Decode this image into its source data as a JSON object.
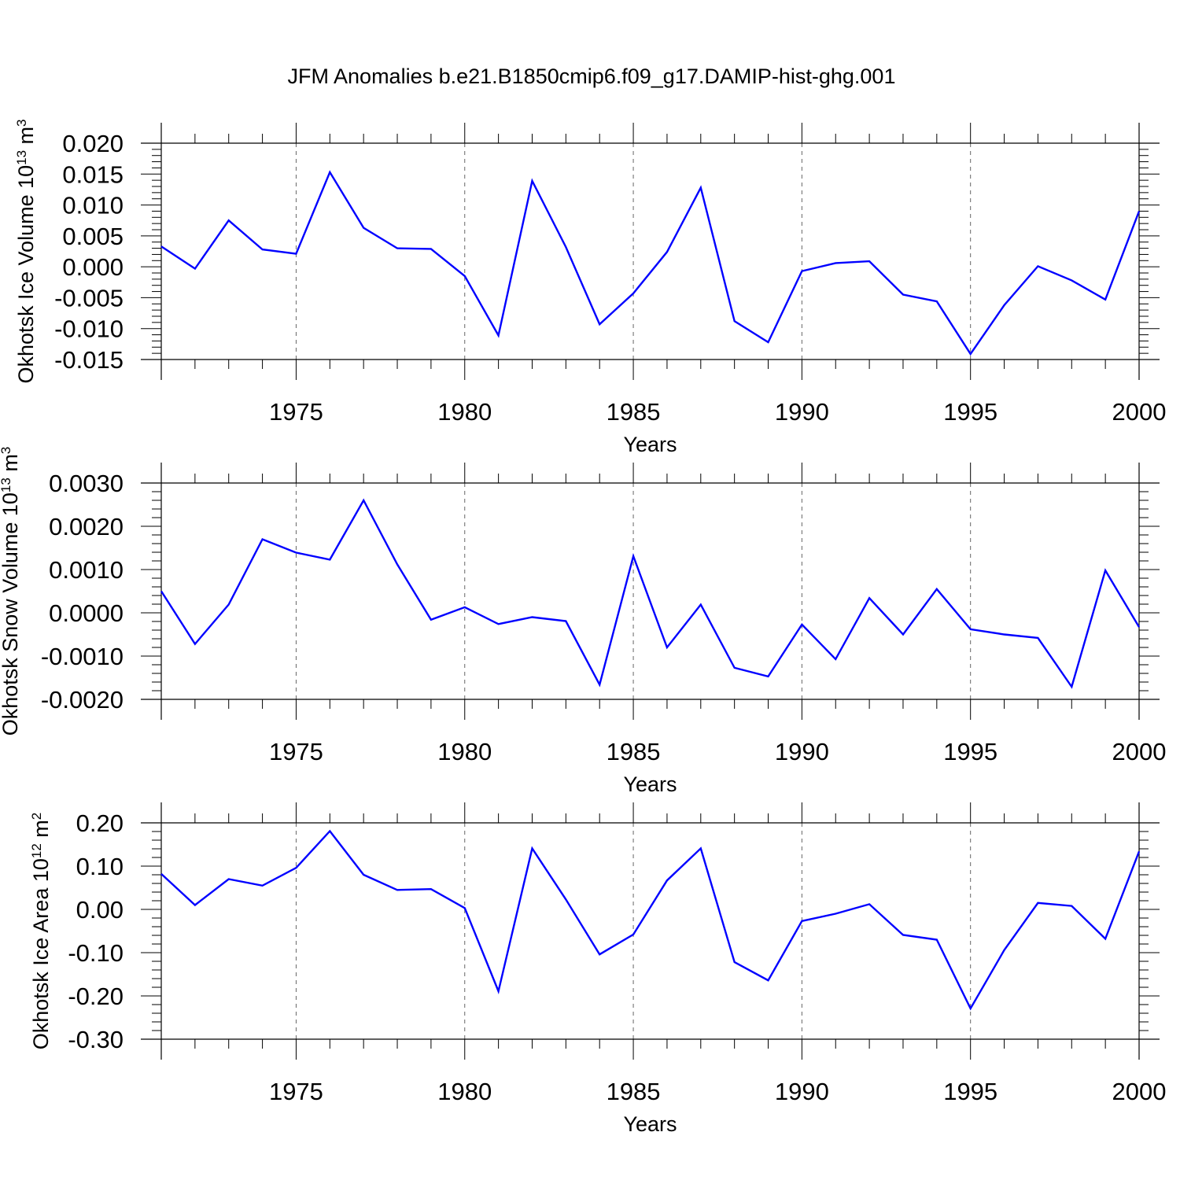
{
  "title": "JFM Anomalies b.e21.B1850cmip6.f09_g17.DAMIP-hist-ghg.001",
  "line_color": "#0000ff",
  "chart_data": [
    {
      "type": "line",
      "ylabel": "Okhotsk Ice Volume 10",
      "ylabel_sup": "13",
      "ylabel_unit": " m",
      "ylabel_unit_sup": "3",
      "xlabel": "Years",
      "ylim": [
        -0.015,
        0.02
      ],
      "yticks": [
        0.02,
        0.015,
        0.01,
        0.005,
        0.0,
        -0.005,
        -0.01,
        -0.015
      ],
      "ytick_labels": [
        "0.020",
        "0.015",
        "0.010",
        "0.005",
        "0.000",
        "-0.005",
        "-0.010",
        "-0.015"
      ],
      "xlim": [
        1971,
        2000
      ],
      "xticks": [
        1975,
        1980,
        1985,
        1990,
        1995,
        2000
      ],
      "xtick_labels": [
        "1975",
        "1980",
        "1985",
        "1990",
        "1995",
        "2000"
      ],
      "grid": "dashed vertical at major x ticks",
      "x": [
        1971,
        1972,
        1973,
        1974,
        1975,
        1976,
        1977,
        1978,
        1979,
        1980,
        1981,
        1982,
        1983,
        1984,
        1985,
        1986,
        1987,
        1988,
        1989,
        1990,
        1991,
        1992,
        1993,
        1994,
        1995,
        1996,
        1997,
        1998,
        1999,
        2000
      ],
      "series": [
        {
          "values": [
            0.0033,
            -0.0003,
            0.0075,
            0.0028,
            0.0021,
            0.0153,
            0.0063,
            0.003,
            0.0029,
            -0.0015,
            -0.0111,
            0.0139,
            0.0032,
            -0.0093,
            -0.0043,
            0.0024,
            0.0128,
            -0.0088,
            -0.0122,
            -0.0007,
            0.0006,
            0.0009,
            -0.0045,
            -0.0056,
            -0.0141,
            -0.0062,
            0.0001,
            -0.0022,
            -0.0053,
            0.009
          ]
        }
      ]
    },
    {
      "type": "line",
      "ylabel": "Okhotsk Snow Volume 10",
      "ylabel_sup": "13",
      "ylabel_unit": " m",
      "ylabel_unit_sup": "3",
      "xlabel": "Years",
      "ylim": [
        -0.002,
        0.003
      ],
      "yticks": [
        0.003,
        0.002,
        0.001,
        0.0,
        -0.001,
        -0.002
      ],
      "ytick_labels": [
        "0.0030",
        "0.0020",
        "0.0010",
        "0.0000",
        "-0.0010",
        "-0.0020"
      ],
      "xlim": [
        1971,
        2000
      ],
      "xticks": [
        1975,
        1980,
        1985,
        1990,
        1995,
        2000
      ],
      "xtick_labels": [
        "1975",
        "1980",
        "1985",
        "1990",
        "1995",
        "2000"
      ],
      "grid": "dashed vertical at major x ticks",
      "x": [
        1971,
        1972,
        1973,
        1974,
        1975,
        1976,
        1977,
        1978,
        1979,
        1980,
        1981,
        1982,
        1983,
        1984,
        1985,
        1986,
        1987,
        1988,
        1989,
        1990,
        1991,
        1992,
        1993,
        1994,
        1995,
        1996,
        1997,
        1998,
        1999,
        2000
      ],
      "series": [
        {
          "values": [
            0.0005,
            -0.00072,
            0.00019,
            0.0017,
            0.00139,
            0.00123,
            0.0026,
            0.00112,
            -0.00016,
            0.00013,
            -0.00026,
            -0.0001,
            -0.00019,
            -0.00166,
            0.00131,
            -0.0008,
            0.00019,
            -0.00127,
            -0.00147,
            -0.00027,
            -0.00107,
            0.00034,
            -0.0005,
            0.00055,
            -0.00038,
            -0.0005,
            -0.00058,
            -0.00171,
            0.00098,
            -0.00033
          ]
        }
      ]
    },
    {
      "type": "line",
      "ylabel": "Okhotsk Ice Area 10",
      "ylabel_sup": "12",
      "ylabel_unit": " m",
      "ylabel_unit_sup": "2",
      "xlabel": "Years",
      "ylim": [
        -0.3,
        0.2
      ],
      "yticks": [
        0.2,
        0.1,
        0.0,
        -0.1,
        -0.2,
        -0.3
      ],
      "ytick_labels": [
        "0.20",
        "0.10",
        "0.00",
        "-0.10",
        "-0.20",
        "-0.30"
      ],
      "xlim": [
        1971,
        2000
      ],
      "xticks": [
        1975,
        1980,
        1985,
        1990,
        1995,
        2000
      ],
      "xtick_labels": [
        "1975",
        "1980",
        "1985",
        "1990",
        "1995",
        "2000"
      ],
      "grid": "dashed vertical at major x ticks",
      "x": [
        1971,
        1972,
        1973,
        1974,
        1975,
        1976,
        1977,
        1978,
        1979,
        1980,
        1981,
        1982,
        1983,
        1984,
        1985,
        1986,
        1987,
        1988,
        1989,
        1990,
        1991,
        1992,
        1993,
        1994,
        1995,
        1996,
        1997,
        1998,
        1999,
        2000
      ],
      "series": [
        {
          "values": [
            0.082,
            0.01,
            0.07,
            0.055,
            0.096,
            0.181,
            0.08,
            0.045,
            0.047,
            0.003,
            -0.189,
            0.141,
            0.023,
            -0.104,
            -0.058,
            0.067,
            0.141,
            -0.122,
            -0.164,
            -0.027,
            -0.01,
            0.012,
            -0.059,
            -0.07,
            -0.229,
            -0.094,
            0.015,
            0.008,
            -0.068,
            0.134
          ]
        }
      ]
    }
  ]
}
